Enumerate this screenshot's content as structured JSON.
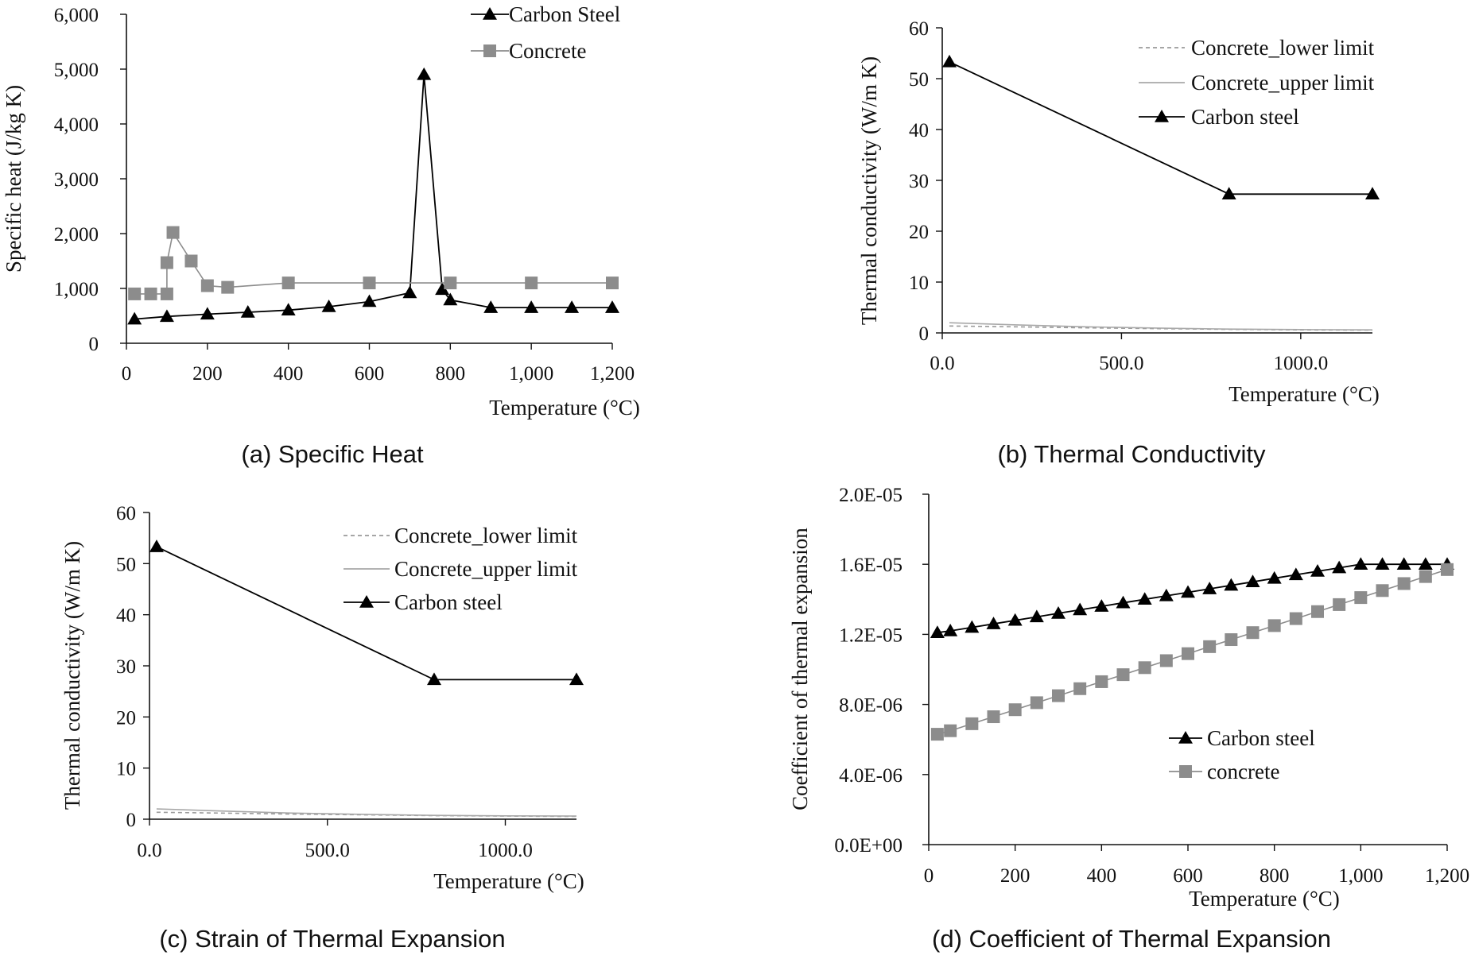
{
  "colors": {
    "carbon": "#000000",
    "concrete": "#8c8c8c",
    "lower": "#9a9a9a",
    "upper": "#a8a8a8"
  },
  "chart_data": [
    {
      "type": "line",
      "caption": "(a) Specific Heat",
      "xlabel": "Temperature (°C)",
      "ylabel": "Specific heat (J/kg K)",
      "xlim": [
        0,
        1200
      ],
      "ylim": [
        0,
        6000
      ],
      "xticks": [
        0,
        200,
        400,
        600,
        800,
        1000,
        1200
      ],
      "xtick_labels": [
        "0",
        "200",
        "400",
        "600",
        "800",
        "1,000",
        "1,200"
      ],
      "yticks": [
        0,
        1000,
        2000,
        3000,
        4000,
        5000,
        6000
      ],
      "ytick_labels": [
        "0",
        "1,000",
        "2,000",
        "3,000",
        "4,000",
        "5,000",
        "6,000"
      ],
      "legend_position": "top-right",
      "series": [
        {
          "name": "Carbon Steel",
          "style": "triangle",
          "x": [
            20,
            100,
            200,
            300,
            400,
            500,
            600,
            700,
            735,
            780,
            800,
            900,
            1000,
            1100,
            1200
          ],
          "y": [
            440,
            488,
            530,
            565,
            605,
            666,
            760,
            920,
            4900,
            980,
            790,
            650,
            650,
            650,
            650
          ]
        },
        {
          "name": "Concrete",
          "style": "square",
          "x": [
            20,
            60,
            100,
            100,
            115,
            160,
            200,
            250,
            400,
            600,
            800,
            1000,
            1200
          ],
          "y": [
            900,
            900,
            900,
            1470,
            2020,
            1500,
            1050,
            1020,
            1100,
            1100,
            1100,
            1100,
            1100
          ]
        }
      ]
    },
    {
      "type": "line",
      "caption": "(b) Thermal Conductivity",
      "xlabel": "Temperature (°C)",
      "ylabel": "Thermal conductivity (W/m K)",
      "xlim": [
        0,
        1200
      ],
      "ylim": [
        0,
        60
      ],
      "xticks": [
        0,
        500,
        1000
      ],
      "xtick_labels": [
        "0.0",
        "500.0",
        "1000.0"
      ],
      "yticks": [
        0,
        10,
        20,
        30,
        40,
        50,
        60
      ],
      "ytick_labels": [
        "0",
        "10",
        "20",
        "30",
        "40",
        "50",
        "60"
      ],
      "legend_position": "top-right",
      "series": [
        {
          "name": "Concrete_lower limit",
          "style": "dashed",
          "x": [
            20,
            200,
            400,
            600,
            800,
            1000,
            1200
          ],
          "y": [
            1.36,
            1.2,
            1.0,
            0.85,
            0.7,
            0.6,
            0.55
          ]
        },
        {
          "name": "Concrete_upper limit",
          "style": "solid",
          "x": [
            20,
            200,
            400,
            600,
            800,
            1000,
            1200
          ],
          "y": [
            2.0,
            1.6,
            1.2,
            0.95,
            0.75,
            0.65,
            0.6
          ]
        },
        {
          "name": "Carbon steel",
          "style": "triangle",
          "x": [
            20,
            800,
            1200
          ],
          "y": [
            53.3,
            27.3,
            27.3
          ]
        }
      ]
    },
    {
      "type": "line",
      "caption": "(c) Strain of Thermal Expansion",
      "xlabel": "Temperature (°C)",
      "ylabel": "Thermal conductivity (W/m K)",
      "xlim": [
        0,
        1200
      ],
      "ylim": [
        0,
        60
      ],
      "xticks": [
        0,
        500,
        1000
      ],
      "xtick_labels": [
        "0.0",
        "500.0",
        "1000.0"
      ],
      "yticks": [
        0,
        10,
        20,
        30,
        40,
        50,
        60
      ],
      "ytick_labels": [
        "0",
        "10",
        "20",
        "30",
        "40",
        "50",
        "60"
      ],
      "legend_position": "top-right",
      "series": [
        {
          "name": "Concrete_lower limit",
          "style": "dashed",
          "x": [
            20,
            200,
            400,
            600,
            800,
            1000,
            1200
          ],
          "y": [
            1.36,
            1.2,
            1.0,
            0.85,
            0.7,
            0.6,
            0.55
          ]
        },
        {
          "name": "Concrete_upper limit",
          "style": "solid",
          "x": [
            20,
            200,
            400,
            600,
            800,
            1000,
            1200
          ],
          "y": [
            2.0,
            1.6,
            1.2,
            0.95,
            0.75,
            0.65,
            0.6
          ]
        },
        {
          "name": "Carbon steel",
          "style": "triangle",
          "x": [
            20,
            800,
            1200
          ],
          "y": [
            53.3,
            27.3,
            27.3
          ]
        }
      ]
    },
    {
      "type": "line",
      "caption": "(d) Coefficient of Thermal Expansion",
      "xlabel": "Temperature (°C)",
      "ylabel": "Coefficient of thermal expansion",
      "xlim": [
        0,
        1200
      ],
      "ylim": [
        0,
        2e-05
      ],
      "xticks": [
        0,
        200,
        400,
        600,
        800,
        1000,
        1200
      ],
      "xtick_labels": [
        "0",
        "200",
        "400",
        "600",
        "800",
        "1,000",
        "1,200"
      ],
      "yticks": [
        0,
        4e-06,
        8e-06,
        1.2e-05,
        1.6e-05,
        2e-05
      ],
      "ytick_labels": [
        "0.0E+00",
        "4.0E-06",
        "8.0E-06",
        "1.2E-05",
        "1.6E-05",
        "2.0E-05"
      ],
      "legend_position": "bottom-right",
      "series": [
        {
          "name": "Carbon steel",
          "style": "triangle",
          "x": [
            20,
            50,
            100,
            150,
            200,
            250,
            300,
            350,
            400,
            450,
            500,
            550,
            600,
            650,
            700,
            750,
            800,
            850,
            900,
            950,
            1000,
            1050,
            1100,
            1150,
            1200
          ],
          "y": [
            1.21e-05,
            1.22e-05,
            1.24e-05,
            1.26e-05,
            1.28e-05,
            1.3e-05,
            1.32e-05,
            1.34e-05,
            1.36e-05,
            1.38e-05,
            1.4e-05,
            1.42e-05,
            1.44e-05,
            1.46e-05,
            1.48e-05,
            1.5e-05,
            1.52e-05,
            1.54e-05,
            1.56e-05,
            1.58e-05,
            1.6e-05,
            1.6e-05,
            1.6e-05,
            1.6e-05,
            1.6e-05
          ]
        },
        {
          "name": "concrete",
          "style": "square",
          "x": [
            20,
            50,
            100,
            150,
            200,
            250,
            300,
            350,
            400,
            450,
            500,
            550,
            600,
            650,
            700,
            750,
            800,
            850,
            900,
            950,
            1000,
            1050,
            1100,
            1150,
            1200
          ],
          "y": [
            6.3e-06,
            6.5e-06,
            6.9e-06,
            7.3e-06,
            7.7e-06,
            8.1e-06,
            8.5e-06,
            8.9e-06,
            9.3e-06,
            9.7e-06,
            1.01e-05,
            1.05e-05,
            1.09e-05,
            1.13e-05,
            1.17e-05,
            1.21e-05,
            1.25e-05,
            1.29e-05,
            1.33e-05,
            1.37e-05,
            1.41e-05,
            1.45e-05,
            1.49e-05,
            1.53e-05,
            1.57e-05
          ]
        }
      ]
    }
  ]
}
